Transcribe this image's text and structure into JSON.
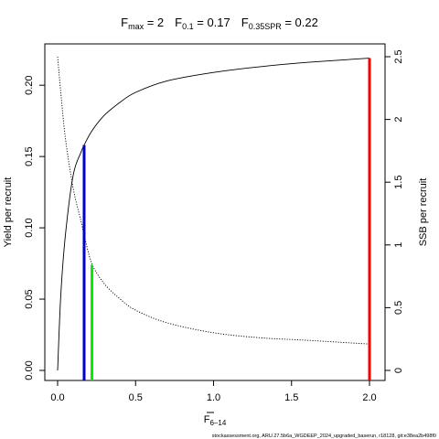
{
  "chart_data": {
    "type": "line",
    "title_parts": [
      {
        "main": "F",
        "sub": "max",
        "rest": " = 2"
      },
      {
        "main": "F",
        "sub": "0.1",
        "rest": " = 0.17"
      },
      {
        "main": "F",
        "sub": "0.35SPR",
        "rest": " = 0.22"
      }
    ],
    "xlabel": {
      "main": "F",
      "sub": "6–14"
    },
    "ylabel": "Yield per recruit",
    "y2label": "SSB per recruit",
    "xlim": [
      0,
      2
    ],
    "ylim": [
      0,
      0.22
    ],
    "y2lim": [
      0,
      2.5
    ],
    "x_ticks": [
      "0.0",
      "0.5",
      "1.0",
      "1.5",
      "2.0"
    ],
    "y_ticks": [
      "0.00",
      "0.05",
      "0.10",
      "0.15",
      "0.20"
    ],
    "y2_ticks": [
      "0",
      "0.5",
      "1",
      "1.5",
      "2",
      "2.5"
    ],
    "series": [
      {
        "style": "solid",
        "axis": "left",
        "x": [
          0,
          0.02,
          0.05,
          0.1,
          0.15,
          0.17,
          0.22,
          0.3,
          0.4,
          0.5,
          0.7,
          1.0,
          1.3,
          1.6,
          2.0
        ],
        "y": [
          0,
          0.052,
          0.095,
          0.137,
          0.153,
          0.158,
          0.168,
          0.179,
          0.188,
          0.195,
          0.203,
          0.209,
          0.213,
          0.216,
          0.219
        ]
      },
      {
        "style": "dotted",
        "axis": "right",
        "x": [
          0,
          0.02,
          0.05,
          0.1,
          0.15,
          0.17,
          0.22,
          0.3,
          0.4,
          0.5,
          0.7,
          1.0,
          1.3,
          1.6,
          2.0
        ],
        "y": [
          2.5,
          2.22,
          1.85,
          1.45,
          1.19,
          1.08,
          0.85,
          0.69,
          0.57,
          0.48,
          0.38,
          0.3,
          0.26,
          0.24,
          0.21
        ]
      }
    ],
    "reference_lines": [
      {
        "label": "Fmax",
        "x": 2.0,
        "y": 0.219,
        "color": "#ff0000"
      },
      {
        "label": "F0.1",
        "x": 0.17,
        "y": 0.158,
        "color": "#0000cc"
      },
      {
        "label": "F0.35SPR",
        "x": 0.22,
        "y": 0.074,
        "color": "#00ee00"
      }
    ],
    "grid": false,
    "footnote": "stockassessment.org, ARU.27.5b6a_WGDEEP_2024_upgraded_baserun, r18128, git:e38ea2b498f0"
  },
  "colors": {
    "axis": "#000000",
    "background": "#ffffff"
  }
}
